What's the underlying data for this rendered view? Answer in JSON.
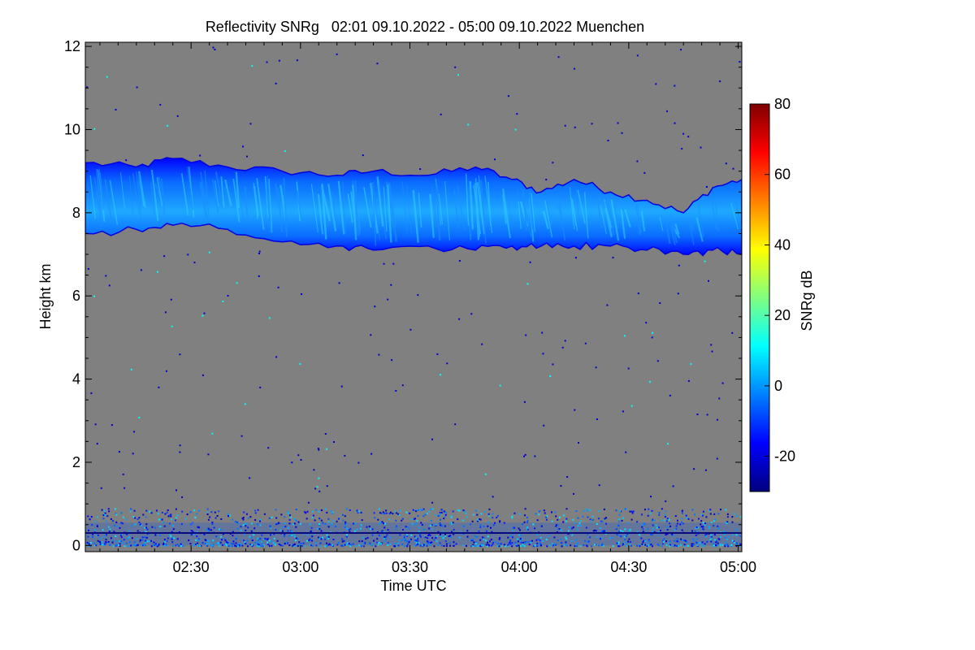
{
  "chart_data": {
    "type": "heatmap",
    "title": "Reflectivity SNRg   02:01 09.10.2022 - 05:00 09.10.2022 Muenchen",
    "xlabel": "Time UTC",
    "ylabel": "Height km",
    "x_range_minutes": [
      121,
      301
    ],
    "x_ticks": [
      {
        "label": "02:30",
        "value": 150
      },
      {
        "label": "03:00",
        "value": 180
      },
      {
        "label": "03:30",
        "value": 210
      },
      {
        "label": "04:00",
        "value": 240
      },
      {
        "label": "04:30",
        "value": 270
      },
      {
        "label": "05:00",
        "value": 300
      }
    ],
    "ylim": [
      -0.15,
      12.1
    ],
    "y_ticks": [
      0,
      2,
      4,
      6,
      8,
      10,
      12
    ],
    "colorbar": {
      "label": "SNRg dB",
      "range": [
        -30,
        80
      ],
      "ticks": [
        -20,
        0,
        20,
        40,
        60,
        80
      ],
      "colors": [
        "#00007f",
        "#0000ff",
        "#0080ff",
        "#00ffff",
        "#80ff80",
        "#ffff00",
        "#ff8000",
        "#ff0000",
        "#7f0000"
      ]
    },
    "background_color": "#808080",
    "cloud_layer": {
      "description_values": "ice cloud echo",
      "snr_typical_db": -5,
      "points": [
        {
          "t": 121,
          "base": 7.5,
          "top": 9.2
        },
        {
          "t": 135,
          "base": 7.6,
          "top": 9.1
        },
        {
          "t": 145,
          "base": 7.7,
          "top": 9.3
        },
        {
          "t": 160,
          "base": 7.6,
          "top": 9.1
        },
        {
          "t": 175,
          "base": 7.3,
          "top": 9.0
        },
        {
          "t": 190,
          "base": 7.2,
          "top": 8.9
        },
        {
          "t": 200,
          "base": 7.1,
          "top": 9.0
        },
        {
          "t": 215,
          "base": 7.2,
          "top": 8.9
        },
        {
          "t": 228,
          "base": 7.1,
          "top": 9.1
        },
        {
          "t": 238,
          "base": 7.2,
          "top": 8.8
        },
        {
          "t": 246,
          "base": 7.2,
          "top": 8.5
        },
        {
          "t": 255,
          "base": 7.2,
          "top": 8.8
        },
        {
          "t": 265,
          "base": 7.2,
          "top": 8.5
        },
        {
          "t": 275,
          "base": 7.1,
          "top": 8.3
        },
        {
          "t": 285,
          "base": 7.0,
          "top": 8.0
        },
        {
          "t": 293,
          "base": 7.1,
          "top": 8.6
        },
        {
          "t": 301,
          "base": 7.0,
          "top": 8.8
        }
      ]
    },
    "ground_clutter": {
      "base": 0.0,
      "top": 0.9,
      "snr_range_db": [
        -25,
        10
      ]
    },
    "reference_line_km": 0.3
  }
}
